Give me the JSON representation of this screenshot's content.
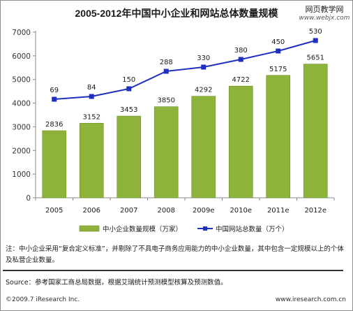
{
  "header": {
    "title": "2005-2012年中国中小企业和网站总体数量规模",
    "watermark_line1": "网页教学网",
    "watermark_line2": "www.webjx.com"
  },
  "notes": {
    "note": "注：中小企业采用“复合定义标准”，并剔除了不具电子商务应用能力的中小企业数量，其中包含一定规模以上的个体及私营企业数量。",
    "source": "Source：参考国家工商总局数据，根据艾瑞统计预测模型核算及预测数值。",
    "copyright": "©2009.7 iResearch Inc.",
    "website": "www.iresearch.com.cn"
  },
  "chart_data": {
    "type": "bar",
    "categories": [
      "2005",
      "2006",
      "2007",
      "2008",
      "2009e",
      "2010e",
      "2011e",
      "2012e"
    ],
    "series": [
      {
        "name": "中小企业数量规模（万家）",
        "type": "bar",
        "axis": "left",
        "values": [
          2836,
          3152,
          3453,
          3850,
          4292,
          4722,
          5175,
          5651
        ],
        "color": "#8db33a"
      },
      {
        "name": "中国网站总数量（万个）",
        "type": "line",
        "axis": "right",
        "values": [
          69,
          84,
          150,
          288,
          330,
          380,
          450,
          530
        ],
        "color": "#1f2fbf"
      }
    ],
    "yticks": [
      "0",
      "1000",
      "2000",
      "3000",
      "4000",
      "5000",
      "6000",
      "7000"
    ],
    "ylim": [
      0,
      7000
    ],
    "legend_position": "bottom",
    "grid": false
  }
}
